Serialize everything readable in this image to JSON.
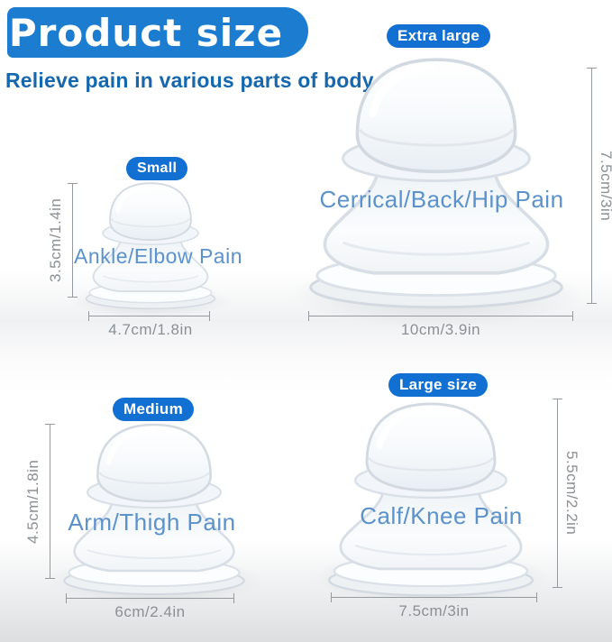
{
  "header": {
    "title": "Product size",
    "subtitle": "Relieve pain in various parts of body"
  },
  "colors": {
    "banner_blue": "#1b7cd0",
    "badge_blue": "#1170d2",
    "subtitle_text": "#1567ae",
    "cup_label_text": "#5b92cb",
    "measure_gray": "#8b9095"
  },
  "cups": [
    {
      "badge": "Small",
      "label": "Ankle/Elbow Pain",
      "height_dim": "3.5cm/1.4in",
      "width_dim": "4.7cm/1.8in"
    },
    {
      "badge": "Extra large",
      "label": "Cerrical/Back/Hip Pain",
      "height_dim": "7.5cm/3in",
      "width_dim": "10cm/3.9in"
    },
    {
      "badge": "Medium",
      "label": "Arm/Thigh Pain",
      "height_dim": "4.5cm/1.8in",
      "width_dim": "6cm/2.4in"
    },
    {
      "badge": "Large size",
      "label": "Calf/Knee Pain",
      "height_dim": "5.5cm/2.2in",
      "width_dim": "7.5cm/3in"
    }
  ]
}
